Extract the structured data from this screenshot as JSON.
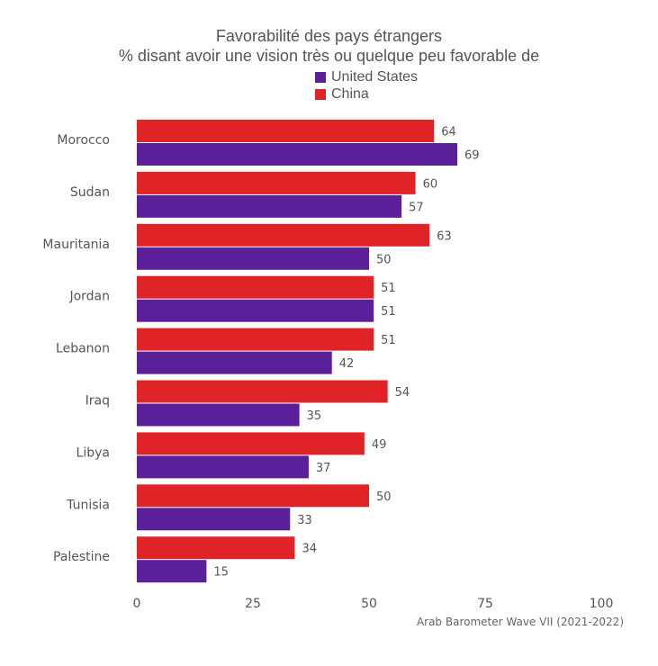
{
  "title": "Favorabilité des pays étrangers",
  "subtitle": "% disant avoir une vision très ou quelque peu favorable de",
  "source": "Arab Barometer Wave VII (2021-2022)",
  "colors": {
    "united_states": "#5b1f9a",
    "china": "#e02327"
  },
  "chart_data": {
    "type": "bar",
    "orientation": "horizontal",
    "categories": [
      "Morocco",
      "Sudan",
      "Mauritania",
      "Jordan",
      "Lebanon",
      "Iraq",
      "Libya",
      "Tunisia",
      "Palestine"
    ],
    "series": [
      {
        "name": "China",
        "values": [
          64,
          60,
          63,
          51,
          51,
          54,
          49,
          50,
          34
        ]
      },
      {
        "name": "United States",
        "values": [
          69,
          57,
          50,
          51,
          42,
          35,
          37,
          33,
          15
        ]
      }
    ],
    "legend": [
      "United States",
      "China"
    ],
    "xlim": [
      0,
      100
    ],
    "xticks": [
      "0",
      "25",
      "50",
      "75",
      "100"
    ],
    "grid": false,
    "legend_position": "top"
  }
}
